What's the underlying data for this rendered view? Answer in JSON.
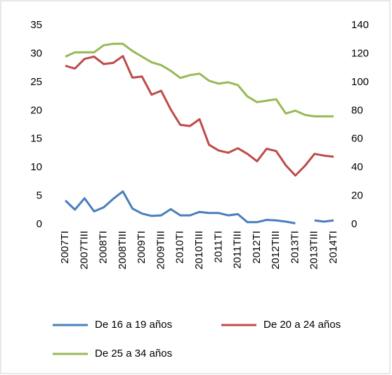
{
  "chart_data": {
    "type": "line",
    "categories": [
      "2007TI",
      null,
      "2007TIII",
      null,
      "2008TI",
      null,
      "2008TIII",
      null,
      "2009TI",
      null,
      "2009TIII",
      null,
      "2010TI",
      null,
      "2010TIII",
      null,
      "2011TI",
      null,
      "2011TIII",
      null,
      "2012TI",
      null,
      "2012TIII",
      null,
      "2013TI",
      null,
      "2013TIII",
      null,
      "2014TI"
    ],
    "series": [
      {
        "name": "De 16 a 19 años",
        "color": "#4a7ebb",
        "values": [
          4.2,
          2.6,
          4.6,
          2.3,
          3.0,
          4.5,
          5.8,
          2.8,
          1.9,
          1.5,
          1.6,
          2.7,
          1.6,
          1.6,
          2.2,
          2.0,
          2.0,
          1.6,
          1.8,
          0.4,
          0.4,
          0.8,
          0.7,
          0.5,
          0.2,
          null,
          0.7,
          0.5,
          0.7
        ]
      },
      {
        "name": "De 20 a 24 años",
        "color": "#be4b48",
        "values": [
          27.9,
          27.4,
          29.1,
          29.5,
          28.2,
          28.4,
          29.6,
          25.8,
          26.0,
          22.8,
          23.5,
          20.2,
          17.5,
          17.3,
          18.5,
          14.0,
          13.0,
          12.6,
          13.4,
          12.4,
          11.1,
          13.3,
          12.9,
          10.4,
          8.6,
          10.3,
          12.4,
          12.1,
          11.9
        ]
      },
      {
        "name": "De 25 a 34 años",
        "color": "#98b954",
        "axis": "y2",
        "values": [
          118,
          121,
          121,
          121,
          126,
          127,
          127,
          122,
          118,
          114,
          112,
          108,
          103,
          105,
          106,
          101,
          99,
          100,
          98,
          90,
          86,
          87,
          88,
          78,
          80,
          77,
          76,
          76,
          76
        ]
      }
    ],
    "ylim": [
      0,
      35
    ],
    "yticks": [
      0,
      5,
      10,
      15,
      20,
      25,
      30,
      35
    ],
    "y2lim": [
      0,
      140
    ],
    "y2ticks": [
      0,
      20,
      40,
      60,
      80,
      100,
      120,
      140
    ]
  }
}
